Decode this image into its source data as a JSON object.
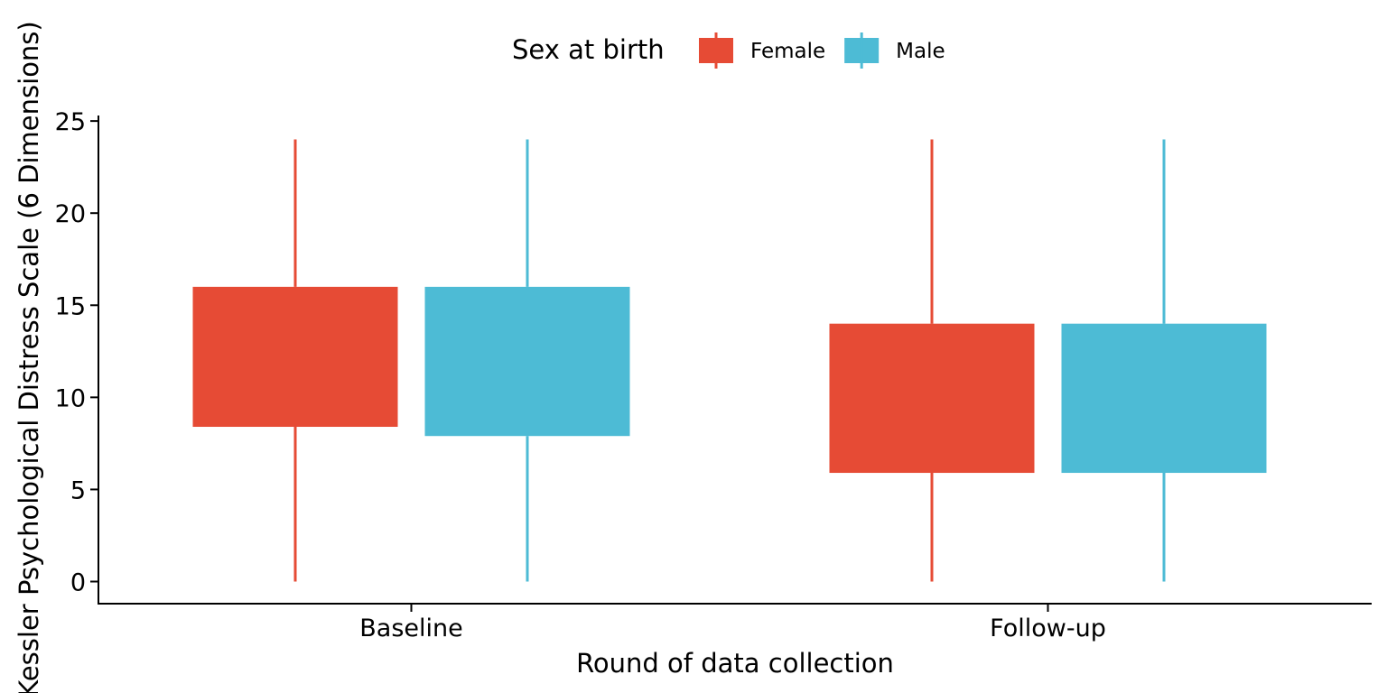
{
  "chart_data": {
    "type": "boxplot",
    "xlabel": "Round of data collection",
    "ylabel": "Kessler Psychological Distress Scale (6 Dimensions)",
    "ylim": [
      -1.2,
      25.3
    ],
    "yticks": [
      0,
      5,
      10,
      15,
      20,
      25
    ],
    "grid": false,
    "legend": {
      "title": "Sex at birth",
      "placement": "top"
    },
    "categories": [
      "Baseline",
      "Follow-up"
    ],
    "series": [
      {
        "name": "Female",
        "color": "#E64B35",
        "boxes": [
          {
            "category": "Baseline",
            "min": 0,
            "q1": 8.4,
            "q3": 16,
            "max": 24
          },
          {
            "category": "Follow-up",
            "min": 0,
            "q1": 5.9,
            "q3": 14,
            "max": 24
          }
        ]
      },
      {
        "name": "Male",
        "color": "#4DBBD5",
        "boxes": [
          {
            "category": "Baseline",
            "min": 0,
            "q1": 7.9,
            "q3": 16,
            "max": 24
          },
          {
            "category": "Follow-up",
            "min": 0,
            "q1": 5.9,
            "q3": 14,
            "max": 24
          }
        ]
      }
    ]
  }
}
